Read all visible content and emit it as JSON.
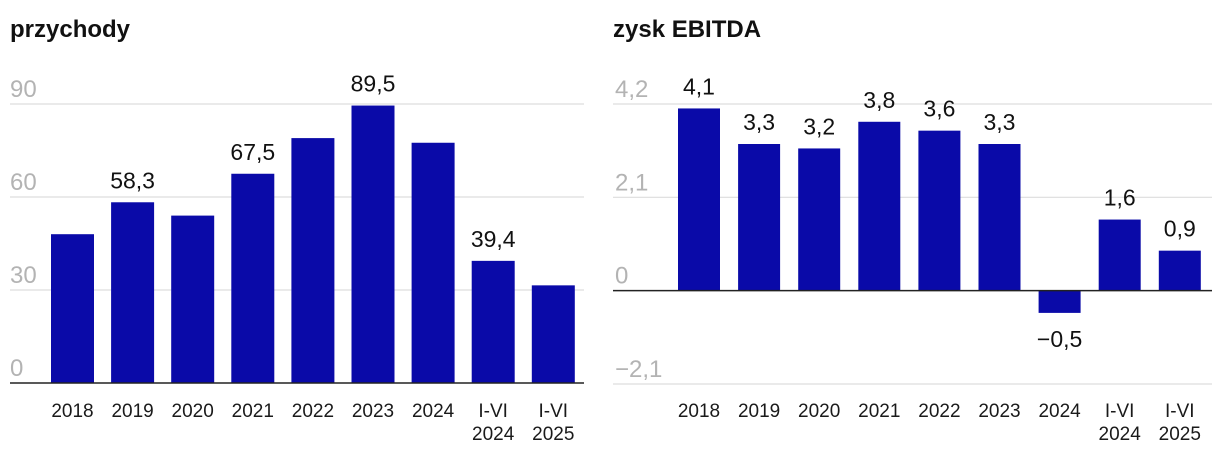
{
  "colors": {
    "bar": "#0a0aa8",
    "grid": "#dddddd",
    "tick": "#b3b3b3",
    "axis": "#222222"
  },
  "chart_data": [
    {
      "type": "bar",
      "title": "przychody",
      "categories": [
        "2018",
        "2019",
        "2020",
        "2021",
        "2022",
        "2023",
        "2024",
        "I-VI 2024",
        "I-VI 2025"
      ],
      "values": [
        48,
        58.3,
        54,
        67.5,
        79,
        89.5,
        77.5,
        39.4,
        31.5
      ],
      "value_labels": [
        "",
        "58,3",
        "",
        "67,5",
        "",
        "89,5",
        "",
        "39,4",
        ""
      ],
      "yticks": [
        0,
        30,
        60,
        90
      ],
      "ytick_labels": [
        "0",
        "30",
        "60",
        "90"
      ],
      "ylim": [
        0,
        90
      ],
      "grid": true
    },
    {
      "type": "bar",
      "title": "zysk EBITDA",
      "categories": [
        "2018",
        "2019",
        "2020",
        "2021",
        "2022",
        "2023",
        "2024",
        "I-VI 2024",
        "I-VI 2025"
      ],
      "values": [
        4.1,
        3.3,
        3.2,
        3.8,
        3.6,
        3.3,
        -0.5,
        1.6,
        0.9
      ],
      "value_labels": [
        "4,1",
        "3,3",
        "3,2",
        "3,8",
        "3,6",
        "3,3",
        "−0,5",
        "1,6",
        "0,9"
      ],
      "yticks": [
        -2.1,
        0,
        2.1,
        4.2
      ],
      "ytick_labels": [
        "−2,1",
        "0",
        "2,1",
        "4,2"
      ],
      "ylim": [
        -2.1,
        4.2
      ],
      "grid": true
    }
  ]
}
